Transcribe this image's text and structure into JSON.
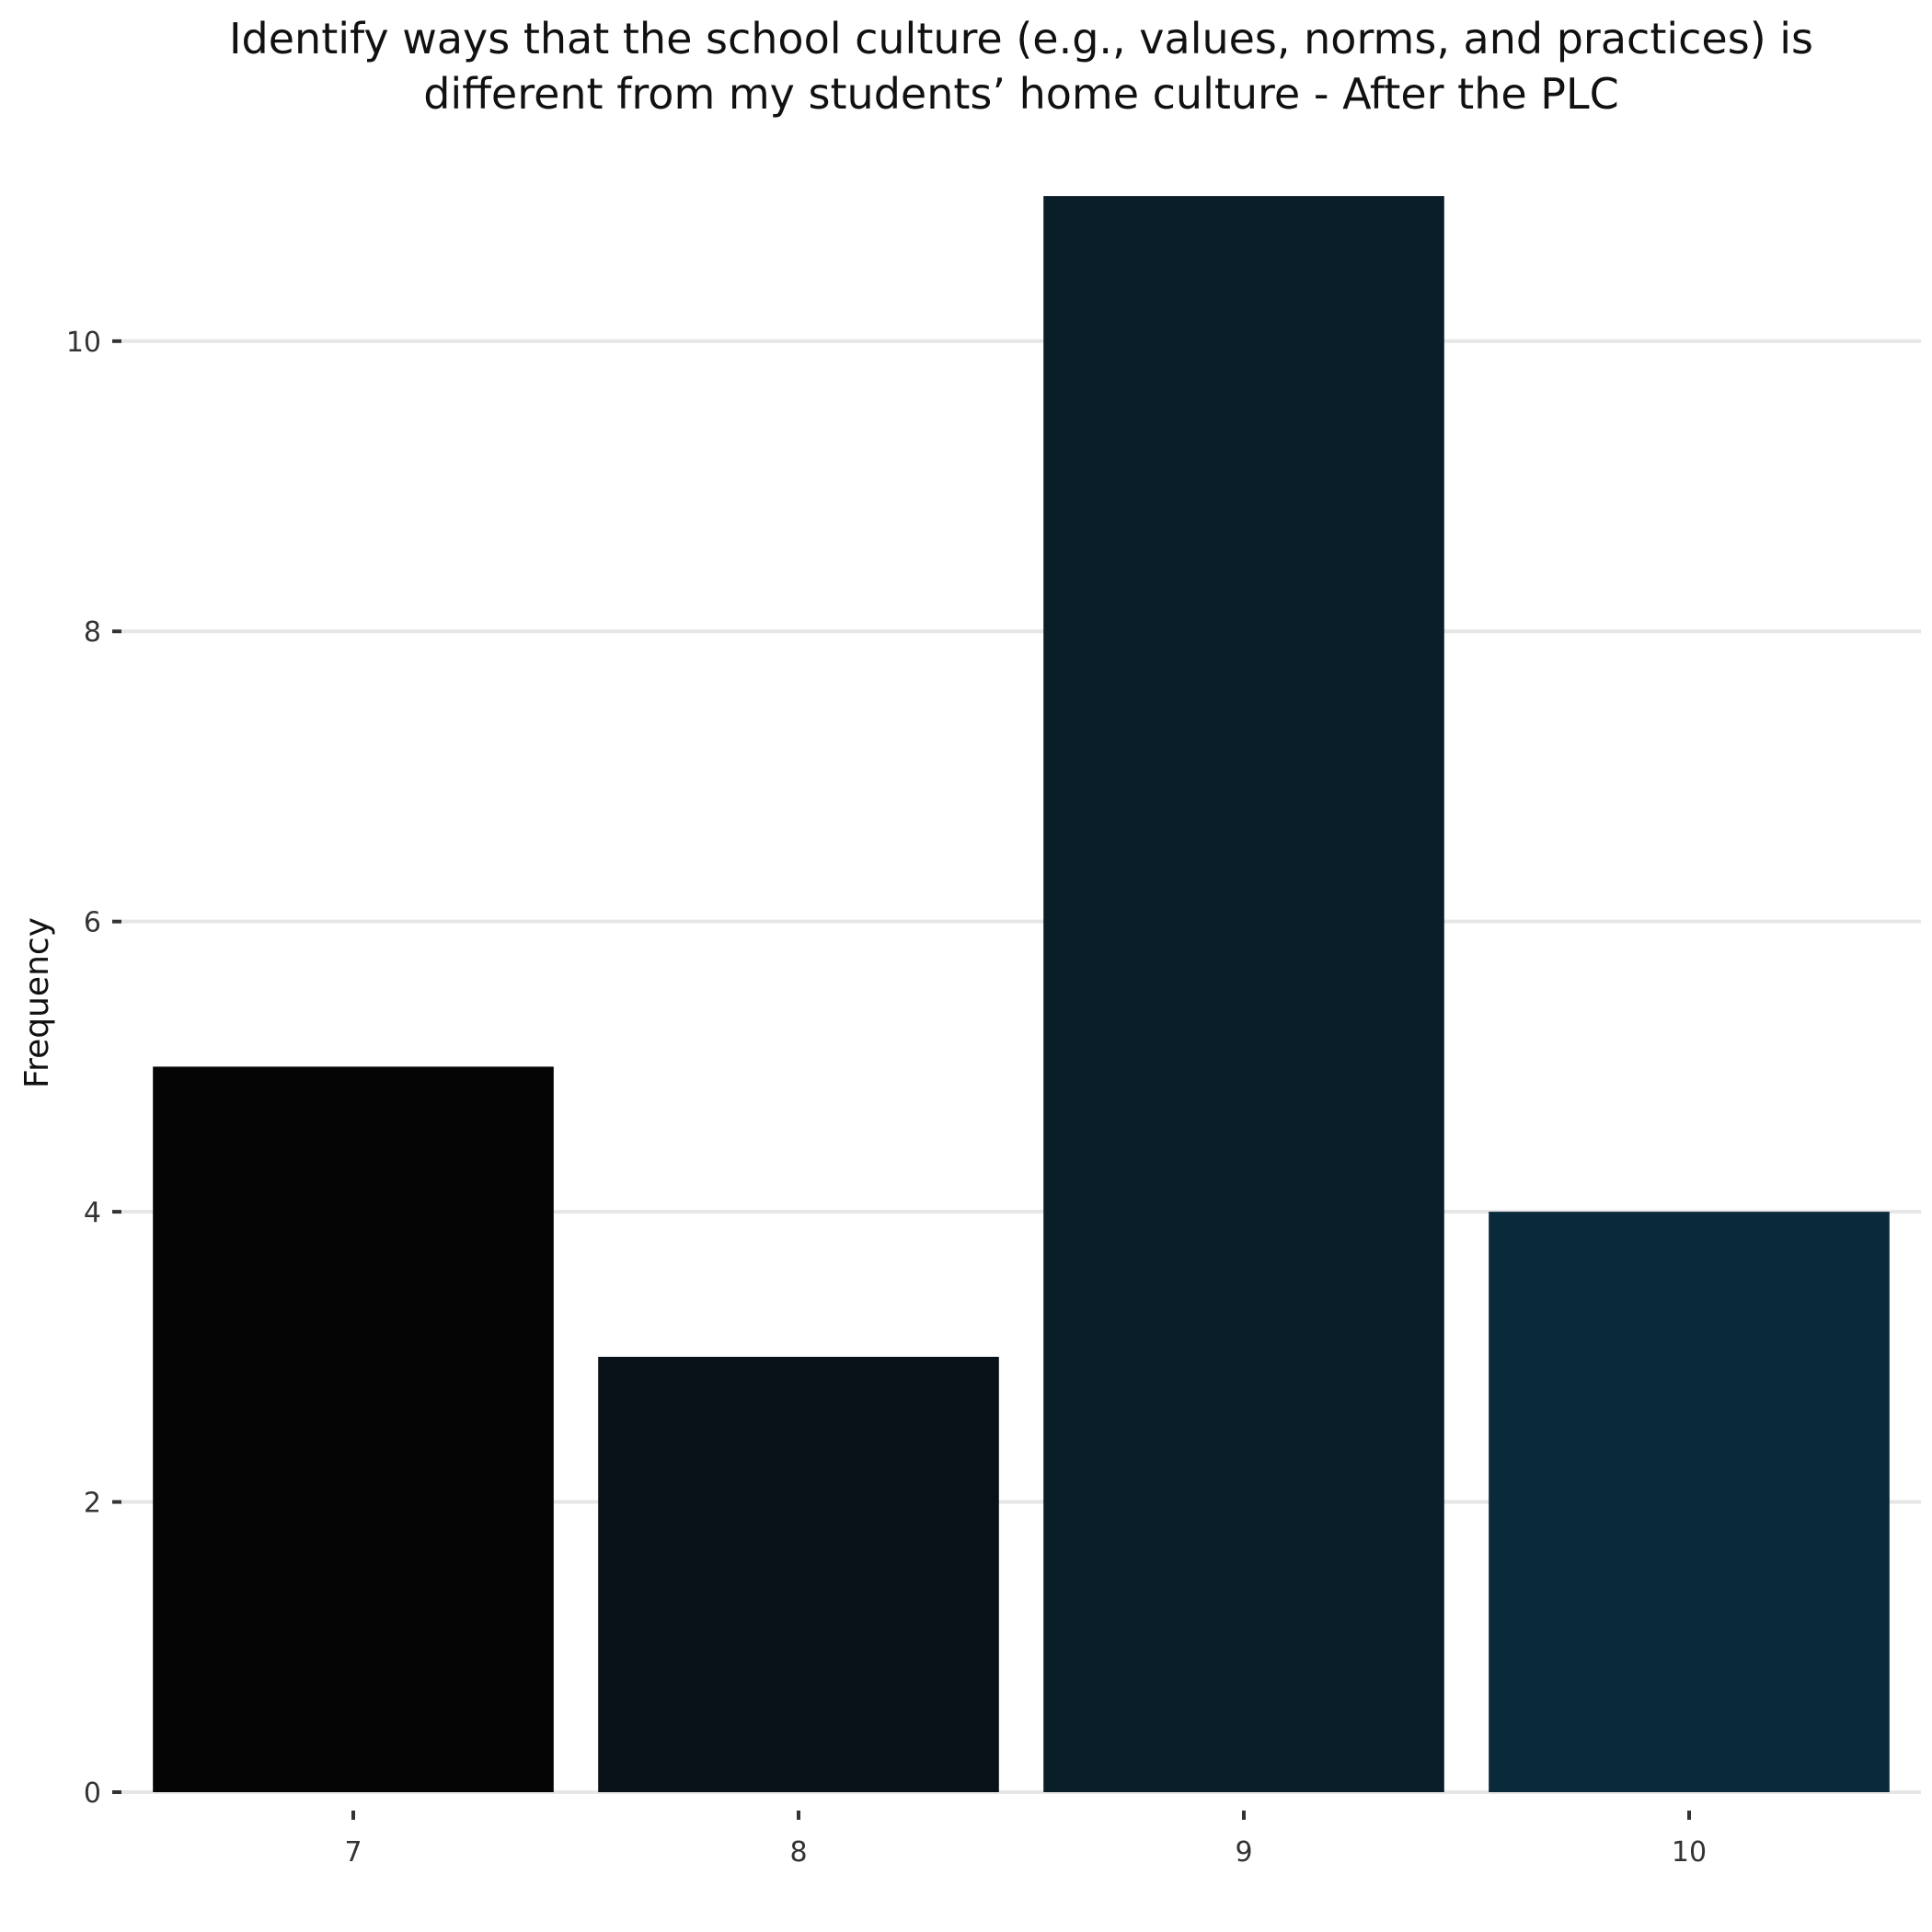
{
  "chart_data": {
    "type": "bar",
    "title_lines": [
      "Identify ways that the school culture (e.g., values, norms, and practices) is",
      "different from my students’ home culture - After the PLC"
    ],
    "xlabel": "",
    "ylabel": "Frequency",
    "categories": [
      "7",
      "8",
      "9",
      "10"
    ],
    "values": [
      5,
      3,
      11,
      4
    ],
    "colors": [
      "#050505",
      "#091118",
      "#0a1e2a",
      "#0a293b"
    ],
    "ylim": [
      0,
      11.4
    ],
    "yticks": [
      0,
      2,
      4,
      6,
      8,
      10
    ],
    "grid": true,
    "legend": "none"
  }
}
